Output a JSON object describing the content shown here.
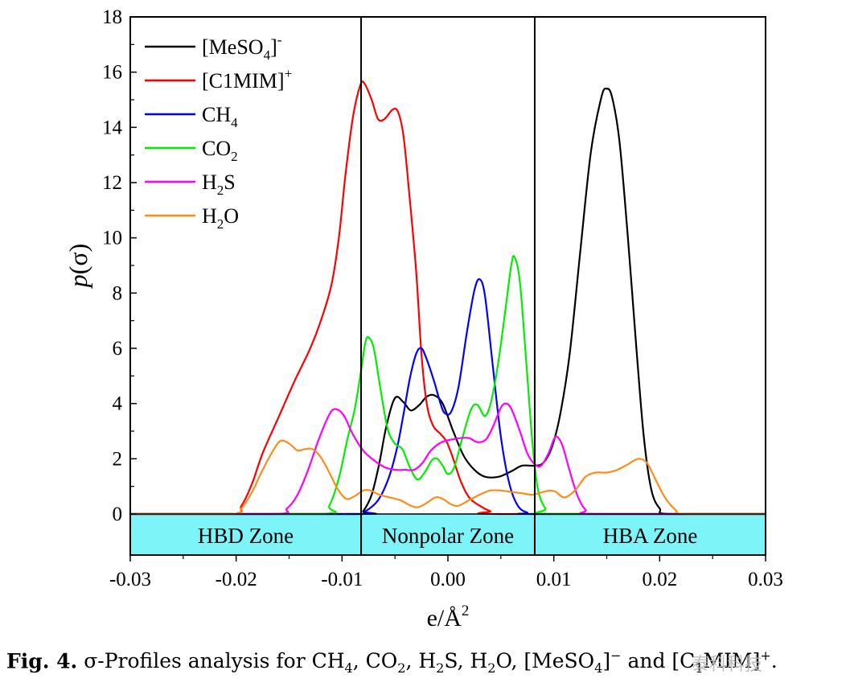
{
  "chart_data": {
    "type": "line",
    "xlabel": "e/Å",
    "xlabel_sup": "2",
    "ylabel": "p(σ)",
    "xlim": [
      -0.03,
      0.03
    ],
    "ylim": [
      0,
      18
    ],
    "xticks": [
      -0.03,
      -0.02,
      -0.01,
      0.0,
      0.01,
      0.02,
      0.03
    ],
    "xtick_labels": [
      "-0.03",
      "-0.02",
      "-0.01",
      "0.00",
      "0.01",
      "0.02",
      "0.03"
    ],
    "yticks": [
      0,
      2,
      4,
      6,
      8,
      10,
      12,
      14,
      16,
      18
    ],
    "ytick_labels": [
      "0",
      "2",
      "4",
      "6",
      "8",
      "10",
      "12",
      "14",
      "16",
      "18"
    ],
    "grid": false,
    "legend_position": "top-left",
    "zone_boundaries": [
      -0.0082,
      0.0082
    ],
    "zones": [
      {
        "label": "HBD Zone",
        "from": -0.03,
        "to": -0.0082
      },
      {
        "label": "Nonpolar Zone",
        "from": -0.0082,
        "to": 0.0082
      },
      {
        "label": "HBA Zone",
        "from": 0.0082,
        "to": 0.03
      }
    ],
    "zone_color": "#7cf4f8",
    "series": [
      {
        "name": "[MeSO4]-",
        "legend_main": "[MeSO",
        "legend_sub": "4",
        "legend_after": "]",
        "legend_sup": "-",
        "color": "#000000",
        "points": [
          [
            -0.03,
            0
          ],
          [
            -0.0085,
            0
          ],
          [
            -0.008,
            0.1
          ],
          [
            -0.0072,
            0.7
          ],
          [
            -0.0065,
            1.8
          ],
          [
            -0.0058,
            3.2
          ],
          [
            -0.005,
            4.2
          ],
          [
            -0.0042,
            4.05
          ],
          [
            -0.0035,
            3.75
          ],
          [
            -0.0027,
            3.95
          ],
          [
            -0.002,
            4.25
          ],
          [
            -0.0013,
            4.3
          ],
          [
            -0.0005,
            4.0
          ],
          [
            0.0005,
            3.0
          ],
          [
            0.0015,
            2.1
          ],
          [
            0.0025,
            1.6
          ],
          [
            0.0035,
            1.35
          ],
          [
            0.0048,
            1.35
          ],
          [
            0.006,
            1.55
          ],
          [
            0.007,
            1.75
          ],
          [
            0.0082,
            1.75
          ],
          [
            0.009,
            1.85
          ],
          [
            0.0098,
            2.4
          ],
          [
            0.0106,
            3.6
          ],
          [
            0.0115,
            5.8
          ],
          [
            0.0125,
            9.5
          ],
          [
            0.0135,
            13.1
          ],
          [
            0.0145,
            15.1
          ],
          [
            0.015,
            15.4
          ],
          [
            0.0155,
            15.1
          ],
          [
            0.0162,
            13.5
          ],
          [
            0.017,
            10.0
          ],
          [
            0.0178,
            6.0
          ],
          [
            0.0185,
            2.8
          ],
          [
            0.0192,
            0.9
          ],
          [
            0.02,
            0.2
          ],
          [
            0.021,
            0
          ],
          [
            0.03,
            0
          ]
        ]
      },
      {
        "name": "[C1MIM]+",
        "legend_main": "[C1MIM]",
        "legend_sub": "",
        "legend_after": "",
        "legend_sup": "+",
        "color": "#ff0000",
        "points": [
          [
            -0.03,
            0
          ],
          [
            -0.0205,
            0
          ],
          [
            -0.0195,
            0.3
          ],
          [
            -0.0185,
            1.1
          ],
          [
            -0.0175,
            2.2
          ],
          [
            -0.016,
            3.5
          ],
          [
            -0.0145,
            4.8
          ],
          [
            -0.013,
            6.0
          ],
          [
            -0.012,
            7.0
          ],
          [
            -0.011,
            8.3
          ],
          [
            -0.0103,
            10.0
          ],
          [
            -0.0097,
            12.2
          ],
          [
            -0.009,
            14.3
          ],
          [
            -0.0083,
            15.5
          ],
          [
            -0.0079,
            15.6
          ],
          [
            -0.0072,
            15.0
          ],
          [
            -0.0066,
            14.3
          ],
          [
            -0.006,
            14.3
          ],
          [
            -0.0052,
            14.65
          ],
          [
            -0.0047,
            14.55
          ],
          [
            -0.0042,
            13.7
          ],
          [
            -0.0037,
            11.8
          ],
          [
            -0.003,
            8.8
          ],
          [
            -0.0025,
            5.8
          ],
          [
            -0.002,
            4.0
          ],
          [
            -0.0014,
            3.2
          ],
          [
            -0.0007,
            2.9
          ],
          [
            -0.0001,
            2.6
          ],
          [
            0.0005,
            2.0
          ],
          [
            0.0012,
            1.2
          ],
          [
            0.002,
            0.6
          ],
          [
            0.003,
            0.3
          ],
          [
            0.004,
            0.1
          ],
          [
            0.005,
            0
          ],
          [
            0.03,
            0
          ]
        ]
      },
      {
        "name": "CH4",
        "legend_main": "CH",
        "legend_sub": "4",
        "legend_after": "",
        "legend_sup": "",
        "color": "#0000ff",
        "points": [
          [
            -0.03,
            0
          ],
          [
            -0.0088,
            0
          ],
          [
            -0.0078,
            0.1
          ],
          [
            -0.0066,
            0.5
          ],
          [
            -0.0056,
            1.3
          ],
          [
            -0.0048,
            2.4
          ],
          [
            -0.0042,
            3.6
          ],
          [
            -0.0036,
            4.9
          ],
          [
            -0.003,
            5.8
          ],
          [
            -0.0025,
            6.0
          ],
          [
            -0.002,
            5.6
          ],
          [
            -0.0013,
            4.8
          ],
          [
            -0.0007,
            4.0
          ],
          [
            -0.0003,
            3.65
          ],
          [
            0.0003,
            3.7
          ],
          [
            0.001,
            4.6
          ],
          [
            0.0018,
            6.6
          ],
          [
            0.0025,
            8.1
          ],
          [
            0.003,
            8.5
          ],
          [
            0.0035,
            7.9
          ],
          [
            0.0042,
            5.5
          ],
          [
            0.005,
            2.8
          ],
          [
            0.0058,
            1.1
          ],
          [
            0.0066,
            0.3
          ],
          [
            0.0075,
            0.05
          ],
          [
            0.0085,
            0
          ],
          [
            0.03,
            0
          ]
        ]
      },
      {
        "name": "CO2",
        "legend_main": "CO",
        "legend_sub": "2",
        "legend_after": "",
        "legend_sup": "",
        "color": "#00ee00",
        "points": [
          [
            -0.03,
            0
          ],
          [
            -0.0122,
            0
          ],
          [
            -0.0112,
            0.3
          ],
          [
            -0.0103,
            1.3
          ],
          [
            -0.0095,
            2.7
          ],
          [
            -0.0088,
            3.8
          ],
          [
            -0.0082,
            5.2
          ],
          [
            -0.0078,
            6.2
          ],
          [
            -0.0075,
            6.4
          ],
          [
            -0.007,
            6.0
          ],
          [
            -0.0064,
            4.6
          ],
          [
            -0.0057,
            3.1
          ],
          [
            -0.005,
            2.55
          ],
          [
            -0.0043,
            2.35
          ],
          [
            -0.0036,
            1.7
          ],
          [
            -0.0029,
            1.25
          ],
          [
            -0.0022,
            1.5
          ],
          [
            -0.0015,
            1.95
          ],
          [
            -0.001,
            2.0
          ],
          [
            -0.0005,
            1.75
          ],
          [
            0.0,
            1.45
          ],
          [
            0.0006,
            1.7
          ],
          [
            0.0014,
            2.8
          ],
          [
            0.0022,
            3.8
          ],
          [
            0.0028,
            3.95
          ],
          [
            0.0035,
            3.55
          ],
          [
            0.0041,
            4.1
          ],
          [
            0.0048,
            5.6
          ],
          [
            0.0055,
            7.6
          ],
          [
            0.006,
            9.05
          ],
          [
            0.0063,
            9.3
          ],
          [
            0.0068,
            8.4
          ],
          [
            0.0074,
            5.5
          ],
          [
            0.008,
            2.5
          ],
          [
            0.0085,
            0.9
          ],
          [
            0.0092,
            0.2
          ],
          [
            0.01,
            0
          ],
          [
            0.03,
            0
          ]
        ]
      },
      {
        "name": "H2S",
        "legend_main": "H",
        "legend_sub": "2",
        "legend_after": "S",
        "legend_sup": "",
        "color": "#ff00ff",
        "points": [
          [
            -0.03,
            0
          ],
          [
            -0.0165,
            0
          ],
          [
            -0.0152,
            0.2
          ],
          [
            -0.0142,
            0.7
          ],
          [
            -0.0132,
            1.6
          ],
          [
            -0.0122,
            2.7
          ],
          [
            -0.0112,
            3.6
          ],
          [
            -0.0106,
            3.8
          ],
          [
            -0.0098,
            3.55
          ],
          [
            -0.009,
            2.9
          ],
          [
            -0.008,
            2.3
          ],
          [
            -0.007,
            1.95
          ],
          [
            -0.006,
            1.7
          ],
          [
            -0.005,
            1.6
          ],
          [
            -0.004,
            1.6
          ],
          [
            -0.0032,
            1.6
          ],
          [
            -0.0024,
            1.85
          ],
          [
            -0.0016,
            2.3
          ],
          [
            -0.0006,
            2.6
          ],
          [
            0.0004,
            2.7
          ],
          [
            0.0012,
            2.75
          ],
          [
            0.002,
            2.75
          ],
          [
            0.0028,
            2.6
          ],
          [
            0.0036,
            2.7
          ],
          [
            0.0043,
            3.2
          ],
          [
            0.005,
            3.85
          ],
          [
            0.0055,
            4.0
          ],
          [
            0.006,
            3.8
          ],
          [
            0.0068,
            3.0
          ],
          [
            0.0075,
            2.2
          ],
          [
            0.0082,
            1.8
          ],
          [
            0.0088,
            1.75
          ],
          [
            0.0095,
            2.2
          ],
          [
            0.01,
            2.7
          ],
          [
            0.0103,
            2.8
          ],
          [
            0.0108,
            2.5
          ],
          [
            0.0114,
            1.7
          ],
          [
            0.0122,
            0.7
          ],
          [
            0.013,
            0.15
          ],
          [
            0.014,
            0
          ],
          [
            0.03,
            0
          ]
        ]
      },
      {
        "name": "H2O",
        "legend_main": "H",
        "legend_sub": "2",
        "legend_after": "O",
        "legend_sup": "",
        "color": "#ff8c1a",
        "points": [
          [
            -0.03,
            0
          ],
          [
            -0.0205,
            0
          ],
          [
            -0.0195,
            0.2
          ],
          [
            -0.0185,
            0.8
          ],
          [
            -0.0175,
            1.6
          ],
          [
            -0.0165,
            2.3
          ],
          [
            -0.0158,
            2.65
          ],
          [
            -0.015,
            2.55
          ],
          [
            -0.0142,
            2.3
          ],
          [
            -0.0135,
            2.35
          ],
          [
            -0.0128,
            2.35
          ],
          [
            -0.012,
            2.05
          ],
          [
            -0.0112,
            1.5
          ],
          [
            -0.0104,
            0.9
          ],
          [
            -0.0096,
            0.55
          ],
          [
            -0.0088,
            0.65
          ],
          [
            -0.008,
            0.85
          ],
          [
            -0.0073,
            0.85
          ],
          [
            -0.0065,
            0.7
          ],
          [
            -0.0055,
            0.6
          ],
          [
            -0.0045,
            0.5
          ],
          [
            -0.0035,
            0.3
          ],
          [
            -0.0028,
            0.25
          ],
          [
            -0.002,
            0.4
          ],
          [
            -0.0012,
            0.6
          ],
          [
            -0.0005,
            0.55
          ],
          [
            0.0003,
            0.35
          ],
          [
            0.001,
            0.3
          ],
          [
            0.002,
            0.5
          ],
          [
            0.003,
            0.7
          ],
          [
            0.004,
            0.85
          ],
          [
            0.005,
            0.85
          ],
          [
            0.006,
            0.8
          ],
          [
            0.007,
            0.75
          ],
          [
            0.008,
            0.7
          ],
          [
            0.009,
            0.8
          ],
          [
            0.0096,
            0.85
          ],
          [
            0.0102,
            0.8
          ],
          [
            0.011,
            0.6
          ],
          [
            0.012,
            0.85
          ],
          [
            0.013,
            1.35
          ],
          [
            0.014,
            1.5
          ],
          [
            0.015,
            1.5
          ],
          [
            0.016,
            1.6
          ],
          [
            0.017,
            1.8
          ],
          [
            0.018,
            2.0
          ],
          [
            0.0188,
            1.85
          ],
          [
            0.0196,
            1.25
          ],
          [
            0.0205,
            0.6
          ],
          [
            0.0215,
            0.15
          ],
          [
            0.0225,
            0
          ],
          [
            0.03,
            0
          ]
        ]
      }
    ]
  },
  "caption": {
    "label": "Fig. 4.",
    "text_before": " σ-Profiles analysis for CH",
    "parts": [
      {
        "t": "σ-Profiles analysis for CH"
      },
      {
        "sub": "4"
      },
      {
        "t": ", CO"
      },
      {
        "sub": "2"
      },
      {
        "t": ", H"
      },
      {
        "sub": "2"
      },
      {
        "t": "S, H"
      },
      {
        "sub": "2"
      },
      {
        "t": "O, [MeSO"
      },
      {
        "sub": "4"
      },
      {
        "t": "]"
      },
      {
        "sup": "−"
      },
      {
        "t": " and [C"
      },
      {
        "sub": "1"
      },
      {
        "t": "MIM]"
      },
      {
        "sup": "+"
      },
      {
        "t": "."
      }
    ]
  },
  "watermark": "泰科科技"
}
